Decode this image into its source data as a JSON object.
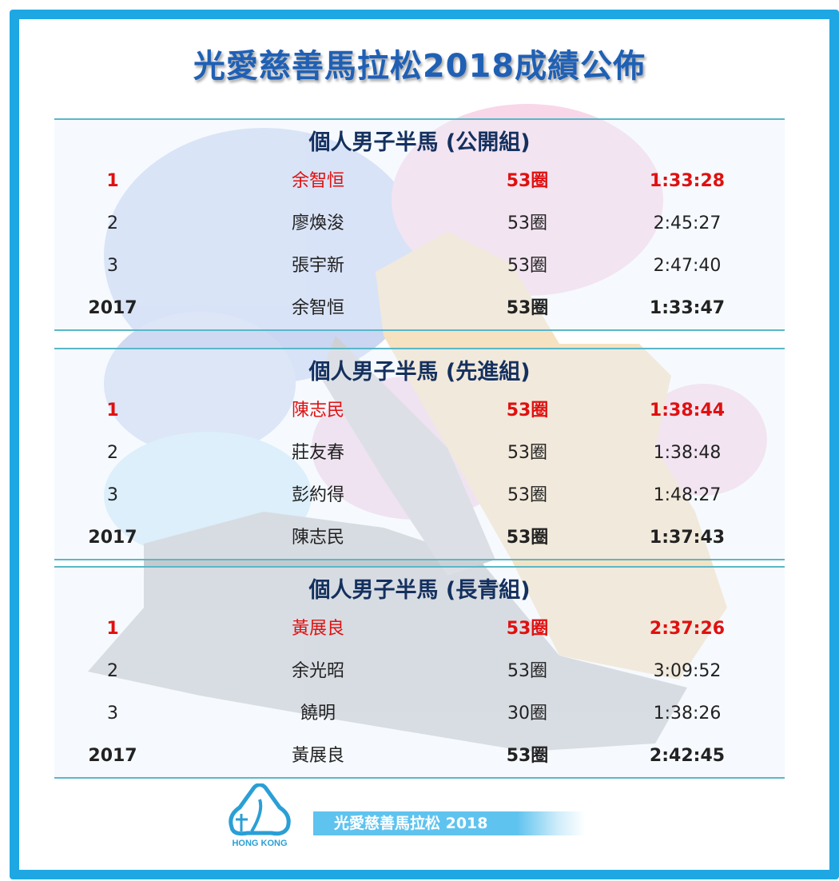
{
  "title": "光愛慈善馬拉松2018成績公佈",
  "colors": {
    "frame": "#1ea7e3",
    "title": "#1f60b5",
    "winner": "#e01010",
    "section_title": "#14305e"
  },
  "sections": [
    {
      "title": "個人男子半馬 (公開組)",
      "rows": [
        {
          "rank": "1",
          "name": "余智恒",
          "laps": "53圈",
          "time": "1:33:28",
          "style": "winner"
        },
        {
          "rank": "2",
          "name": "廖煥浚",
          "laps": "53圈",
          "time": "2:45:27",
          "style": "normal"
        },
        {
          "rank": "3",
          "name": "張宇新",
          "laps": "53圈",
          "time": "2:47:40",
          "style": "normal"
        },
        {
          "rank": "2017",
          "name": "余智恒",
          "laps": "53圈",
          "time": "1:33:47",
          "style": "record"
        }
      ]
    },
    {
      "title": "個人男子半馬 (先進組)",
      "rows": [
        {
          "rank": "1",
          "name": "陳志民",
          "laps": "53圈",
          "time": "1:38:44",
          "style": "winner"
        },
        {
          "rank": "2",
          "name": "莊友春",
          "laps": "53圈",
          "time": "1:38:48",
          "style": "normal"
        },
        {
          "rank": "3",
          "name": "彭約得",
          "laps": "53圈",
          "time": "1:48:27",
          "style": "normal"
        },
        {
          "rank": "2017",
          "name": "陳志民",
          "laps": "53圈",
          "time": "1:37:43",
          "style": "record"
        }
      ]
    },
    {
      "title": "個人男子半馬 (長青組)",
      "rows": [
        {
          "rank": "1",
          "name": "黃展良",
          "laps": "53圈",
          "time": "2:37:26",
          "style": "winner"
        },
        {
          "rank": "2",
          "name": "余光昭",
          "laps": "53圈",
          "time": "3:09:52",
          "style": "normal"
        },
        {
          "rank": "3",
          "name": "饒明",
          "laps": "30圈",
          "time": "1:38:26",
          "style": "normal"
        },
        {
          "rank": "2017",
          "name": "黃展良",
          "laps": "53圈",
          "time": "2:42:45",
          "style": "record"
        }
      ]
    }
  ],
  "footer": {
    "logo_text": "HONG KONG",
    "banner_text": "光愛慈善馬拉松 2018"
  }
}
